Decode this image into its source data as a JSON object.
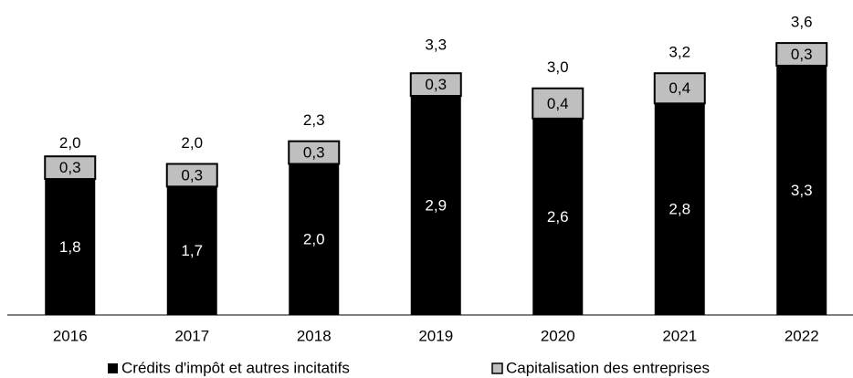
{
  "chart_data": {
    "type": "stacked_bar",
    "categories": [
      "2016",
      "2017",
      "2018",
      "2019",
      "2020",
      "2021",
      "2022"
    ],
    "series": [
      {
        "name": "Crédits d'impôt et autres incitatifs",
        "color": "#000000",
        "values": [
          1.8,
          1.7,
          2.0,
          2.9,
          2.6,
          2.8,
          3.3
        ],
        "value_labels": [
          "1,8",
          "1,7",
          "2,0",
          "2,9",
          "2,6",
          "2,8",
          "3,3"
        ]
      },
      {
        "name": "Capitalisation des entreprises",
        "color": "#bfbfbf",
        "values": [
          0.3,
          0.3,
          0.3,
          0.3,
          0.4,
          0.4,
          0.3
        ],
        "value_labels": [
          "0,3",
          "0,3",
          "0,3",
          "0,3",
          "0,4",
          "0,4",
          "0,3"
        ]
      }
    ],
    "totals": [
      2.0,
      2.0,
      2.3,
      3.3,
      3.0,
      3.2,
      3.6
    ],
    "total_labels": [
      "2,0",
      "2,0",
      "2,3",
      "3,3",
      "3,0",
      "3,2",
      "3,6"
    ],
    "ylim": [
      0,
      4
    ]
  }
}
